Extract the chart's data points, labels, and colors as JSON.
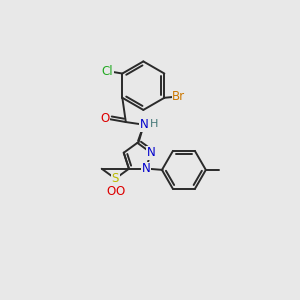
{
  "background_color": "#e8e8e8",
  "bond_color": "#2a2a2a",
  "bond_width": 1.4,
  "atoms": {
    "Br": {
      "color": "#cc7700"
    },
    "Cl": {
      "color": "#22aa22"
    },
    "O": {
      "color": "#dd0000"
    },
    "N": {
      "color": "#0000cc"
    },
    "S": {
      "color": "#bbbb00"
    },
    "H": {
      "color": "#447777"
    },
    "C": {
      "color": "#2a2a2a"
    }
  },
  "fontsize": 8.5
}
